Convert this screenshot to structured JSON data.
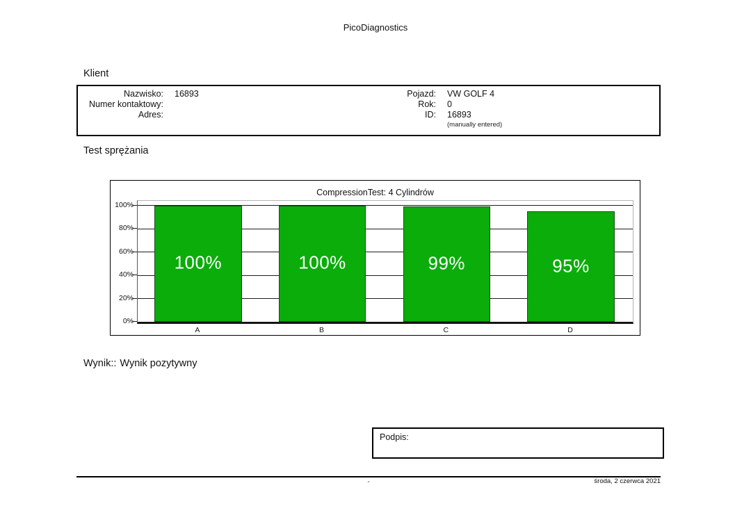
{
  "page": {
    "title": "PicoDiagnostics",
    "footer": {
      "separator": "-",
      "date": "środa, 2 czerwca 2021"
    }
  },
  "client": {
    "heading": "Klient",
    "left": [
      {
        "label": "Nazwisko:",
        "value": "16893"
      },
      {
        "label": "Numer kontaktowy:",
        "value": ""
      },
      {
        "label": "Adres:",
        "value": ""
      }
    ],
    "right": [
      {
        "label": "Pojazd:",
        "value": "VW GOLF 4"
      },
      {
        "label": "Rok:",
        "value": "0"
      },
      {
        "label": "ID:",
        "value": "16893"
      }
    ],
    "note": "(manually entered)"
  },
  "test": {
    "heading": "Test sprężania",
    "result_label": "Wynik::",
    "result_value": "Wynik pozytywny"
  },
  "signature": {
    "label": "Podpis:"
  },
  "chart_data": {
    "type": "bar",
    "title": "CompressionTest: 4 Cylindrów",
    "categories": [
      "A",
      "B",
      "C",
      "D"
    ],
    "values": [
      100,
      100,
      99,
      95
    ],
    "value_labels": [
      "100%",
      "100%",
      "99%",
      "95%"
    ],
    "xlabel": "",
    "ylabel": "",
    "ylim": [
      0,
      104
    ],
    "yticks": [
      "0%",
      "20%",
      "40%",
      "60%",
      "80%",
      "100%"
    ],
    "grid": true,
    "legend": false,
    "bar_color": "#0aad0a",
    "bar_border_color": "#155015",
    "bar_label_color": "#ffffff"
  }
}
